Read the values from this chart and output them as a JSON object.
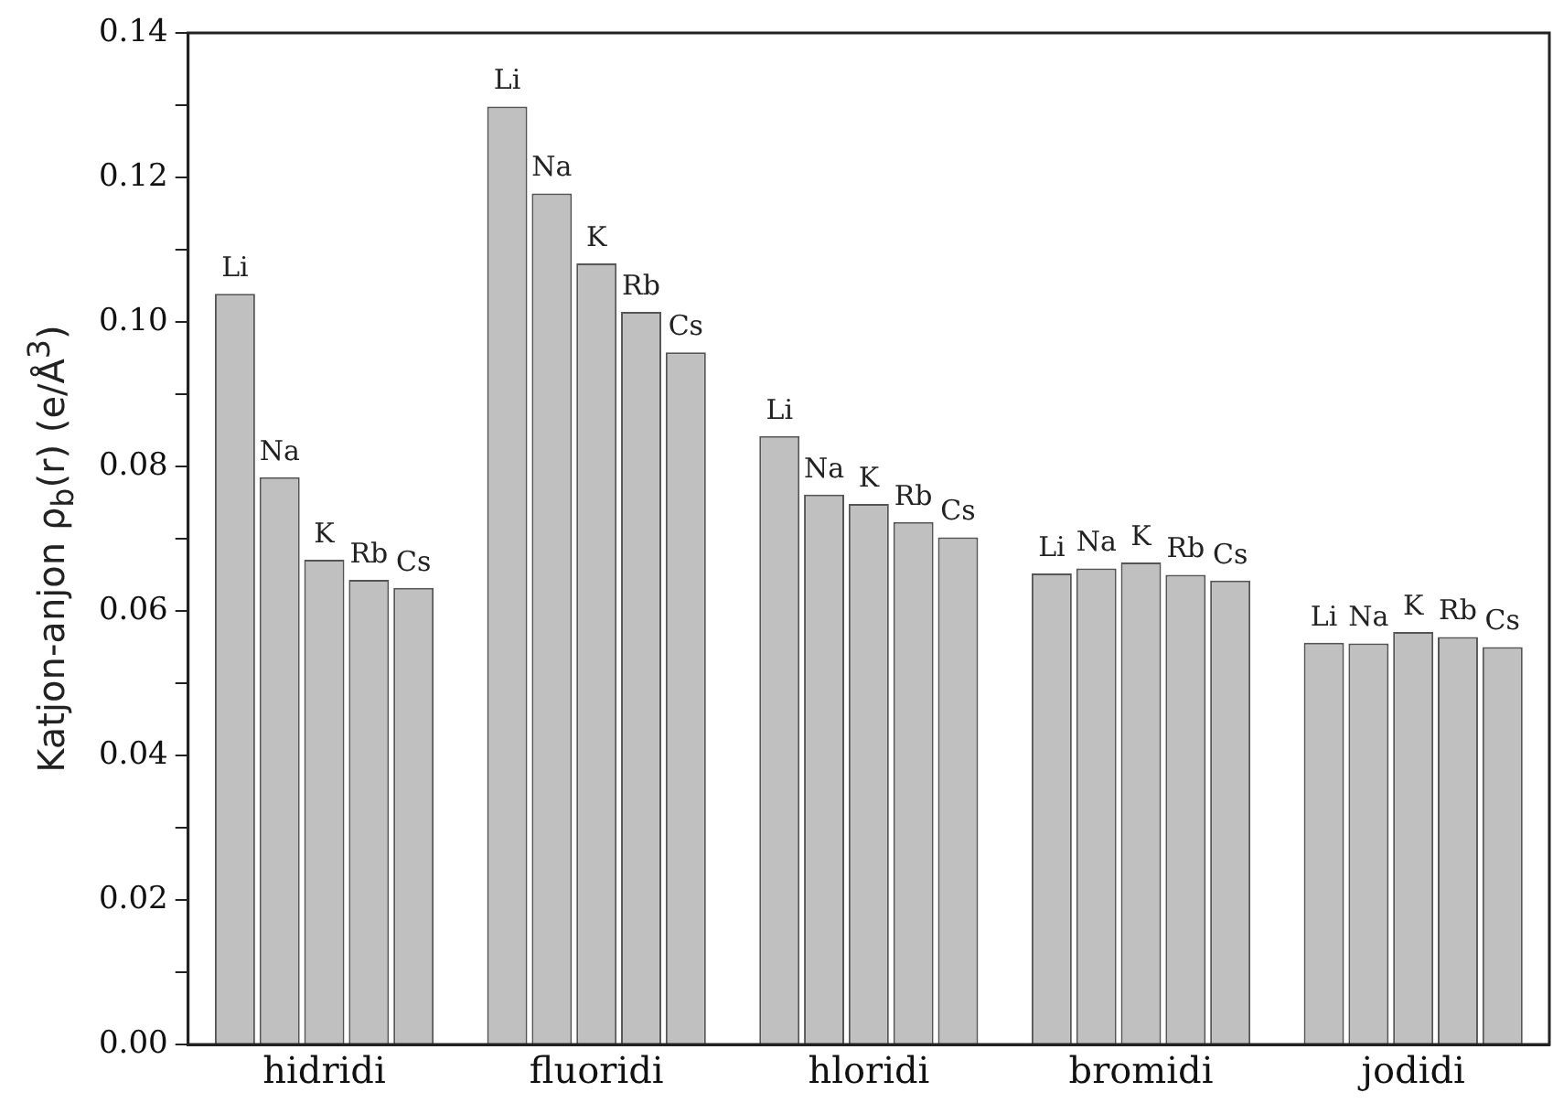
{
  "chart_data": {
    "type": "bar",
    "ylabel": "Katjon-anjon ρ$_{b}$(r) (e/Å$^{3}$)",
    "categories": [
      "hidridi",
      "fluoridi",
      "hloridi",
      "bromidi",
      "jodidi"
    ],
    "series": [
      {
        "name": "Li",
        "color": "#c0c0c0",
        "values": [
          0.1039,
          0.1298,
          0.0842,
          0.0652,
          0.0556
        ]
      },
      {
        "name": "Na",
        "color": "#c0c0c0",
        "values": [
          0.0785,
          0.1178,
          0.0761,
          0.0659,
          0.0555
        ]
      },
      {
        "name": "K",
        "color": "#c0c0c0",
        "values": [
          0.0671,
          0.1081,
          0.0748,
          0.0667,
          0.0571
        ]
      },
      {
        "name": "Rb",
        "color": "#c0c0c0",
        "values": [
          0.0643,
          0.1014,
          0.0723,
          0.065,
          0.0564
        ]
      },
      {
        "name": "Cs",
        "color": "#c0c0c0",
        "values": [
          0.0632,
          0.0958,
          0.0702,
          0.0642,
          0.055
        ]
      }
    ],
    "ylim": [
      0,
      0.14
    ],
    "yticks": [
      {
        "value": 0,
        "label": "0.00"
      },
      {
        "value": 0.01,
        "label": null
      },
      {
        "value": 0.02,
        "label": "0.02"
      },
      {
        "value": 0.03,
        "label": null
      },
      {
        "value": 0.04,
        "label": "0.04"
      },
      {
        "value": 0.05,
        "label": null
      },
      {
        "value": 0.06,
        "label": "0.06"
      },
      {
        "value": 0.07,
        "label": null
      },
      {
        "value": 0.08,
        "label": "0.08"
      },
      {
        "value": 0.09,
        "label": null
      },
      {
        "value": 0.1,
        "label": "0.10"
      },
      {
        "value": 0.11,
        "label": null
      },
      {
        "value": 0.12,
        "label": "0.12"
      },
      {
        "value": 0.13,
        "label": null
      },
      {
        "value": 0.14,
        "label": "0.14"
      }
    ],
    "grid": false,
    "legend": false
  }
}
